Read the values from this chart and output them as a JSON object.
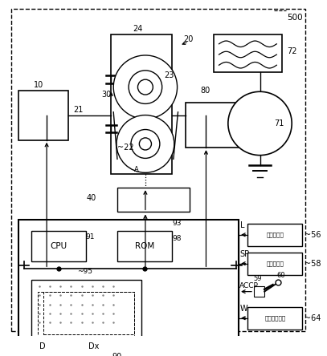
{
  "bg_color": "#ffffff",
  "outer_label": "500",
  "sensor_labels": {
    "56": "油温传感器",
    "58": "车速传感器",
    "64": "加速度传感器"
  }
}
